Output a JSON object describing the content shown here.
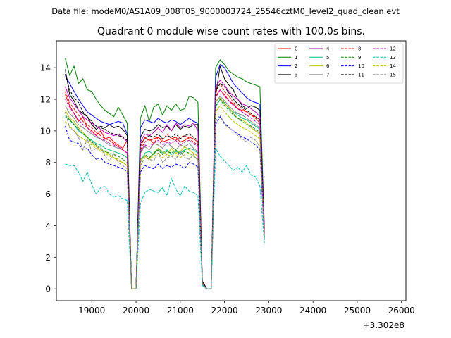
{
  "chart_data": {
    "type": "line",
    "suptitle": "Data file: modeM0/AS1A09_008T05_9000003724_25546cztM0_level2_quad_clean.evt",
    "title": "Quadrant 0 module wise count rates with 100.0s bins.",
    "xlabel": "",
    "ylabel": "",
    "x_offset_label": "+3.302e8",
    "x_tick_labels": [
      "19000",
      "20000",
      "21000",
      "22000",
      "23000",
      "24000",
      "25000",
      "26000"
    ],
    "x_ticks": [
      19000,
      20000,
      21000,
      22000,
      23000,
      24000,
      25000,
      26000
    ],
    "y_tick_labels": [
      "0",
      "2",
      "4",
      "6",
      "8",
      "10",
      "12",
      "14"
    ],
    "y_ticks": [
      0,
      2,
      4,
      6,
      8,
      10,
      12,
      14
    ],
    "xlim": [
      18200,
      26100
    ],
    "ylim": [
      -0.75,
      15.7
    ],
    "grid": false,
    "legend_position": "top-right",
    "legend_columns": 4,
    "segments": [
      {
        "start": 18400,
        "n": 15
      },
      {
        "start": 19900,
        "n": 1
      },
      {
        "start": 20000,
        "n": 20
      },
      {
        "start": 22000,
        "n": 14
      },
      {
        "start": 23400,
        "n": 2
      },
      {
        "start": 23600,
        "n": 9
      },
      {
        "start": 24500,
        "n": 12
      }
    ],
    "series": [
      {
        "name": "0",
        "color": "#ff0000",
        "dash": "solid",
        "values": [
          12.3,
          11.6,
          11.1,
          10.6,
          10.9,
          10.2,
          10.0,
          9.7,
          10.0,
          9.5,
          9.6,
          9.3,
          9.1,
          8.9,
          9.4,
          0.0,
          0,
          9.0,
          9.6,
          9.4,
          9.5,
          9.6,
          9.3,
          9.4,
          9.5,
          9.6,
          9.3,
          9.4,
          9.6,
          9.5,
          9.3,
          0.4,
          0.0,
          0,
          12.2,
          12.6,
          12.3,
          11.9,
          11.7,
          11.4,
          11.3,
          11.2,
          11.0,
          10.9,
          10.7,
          3.5
        ]
      },
      {
        "name": "1",
        "color": "#008000",
        "dash": "solid",
        "values": [
          14.6,
          13.5,
          14.1,
          13.0,
          13.3,
          12.6,
          12.5,
          12.0,
          11.6,
          11.3,
          11.1,
          10.9,
          11.5,
          11.0,
          10.5,
          0.0,
          0,
          10.8,
          11.6,
          10.6,
          11.5,
          11.7,
          11.0,
          11.6,
          11.3,
          11.7,
          11.3,
          11.4,
          12.2,
          12.1,
          11.8,
          0.3,
          0.0,
          0,
          14.0,
          14.5,
          14.2,
          13.8,
          13.6,
          13.4,
          13.3,
          13.1,
          13.0,
          12.9,
          12.8,
          4.0
        ]
      },
      {
        "name": "2",
        "color": "#0000ff",
        "dash": "solid",
        "values": [
          13.5,
          13.0,
          12.5,
          12.0,
          11.6,
          11.2,
          11.0,
          10.8,
          10.6,
          10.5,
          10.4,
          10.5,
          10.6,
          10.5,
          9.8,
          0.0,
          0,
          10.2,
          10.7,
          10.6,
          10.5,
          10.8,
          10.6,
          10.5,
          10.7,
          10.6,
          10.4,
          10.6,
          10.8,
          10.6,
          10.5,
          0.3,
          0.0,
          0,
          13.4,
          14.2,
          14.0,
          13.5,
          13.0,
          12.7,
          12.4,
          12.1,
          11.9,
          11.8,
          11.7,
          3.8
        ]
      },
      {
        "name": "3",
        "color": "#000000",
        "dash": "solid",
        "values": [
          13.9,
          12.3,
          11.9,
          11.3,
          11.1,
          10.9,
          10.4,
          10.1,
          10.3,
          10.2,
          10.4,
          10.2,
          10.3,
          10.1,
          9.7,
          0.0,
          0,
          9.6,
          10.1,
          10.0,
          10.1,
          10.4,
          10.2,
          10.3,
          10.0,
          10.4,
          10.1,
          10.3,
          10.2,
          10.4,
          10.4,
          0.5,
          0.0,
          0,
          12.2,
          14.1,
          13.3,
          12.9,
          12.6,
          12.0,
          11.6,
          11.4,
          11.6,
          11.5,
          11.3,
          3.4
        ]
      },
      {
        "name": "4",
        "color": "#bf00bf",
        "dash": "solid",
        "values": [
          12.8,
          12.1,
          11.7,
          11.3,
          10.9,
          10.7,
          10.5,
          10.3,
          10.1,
          9.9,
          9.8,
          9.7,
          9.8,
          9.6,
          9.3,
          0.0,
          0,
          9.3,
          9.8,
          9.7,
          9.9,
          10.2,
          9.9,
          10.4,
          10.0,
          10.5,
          10.2,
          10.4,
          10.3,
          10.5,
          10.0,
          0.3,
          0.0,
          0,
          12.8,
          13.2,
          12.9,
          12.5,
          12.2,
          12.0,
          11.7,
          11.6,
          11.4,
          11.2,
          10.9,
          3.6
        ]
      },
      {
        "name": "5",
        "color": "#00bf80",
        "dash": "solid",
        "values": [
          10.9,
          10.7,
          10.4,
          10.0,
          9.8,
          9.6,
          9.4,
          9.2,
          9.1,
          8.9,
          8.8,
          8.7,
          8.6,
          8.5,
          8.3,
          0.0,
          0,
          8.0,
          8.6,
          8.7,
          8.5,
          8.9,
          8.6,
          8.8,
          8.5,
          8.7,
          8.6,
          8.8,
          8.9,
          8.8,
          8.6,
          0.3,
          0.0,
          0,
          11.5,
          12.0,
          11.8,
          11.4,
          11.2,
          11.0,
          10.8,
          10.7,
          10.5,
          10.3,
          10.1,
          3.3
        ]
      },
      {
        "name": "6",
        "color": "#bfbf00",
        "dash": "solid",
        "values": [
          11.3,
          10.8,
          10.6,
          10.2,
          9.9,
          9.6,
          9.2,
          9.0,
          8.8,
          8.7,
          8.5,
          8.3,
          8.1,
          8.0,
          7.8,
          0.0,
          0,
          8.1,
          8.4,
          8.2,
          8.6,
          8.9,
          8.7,
          8.5,
          8.9,
          8.6,
          8.7,
          9.0,
          8.8,
          8.6,
          8.4,
          0.3,
          0.0,
          0,
          11.9,
          12.1,
          11.7,
          11.5,
          11.1,
          10.8,
          10.7,
          10.5,
          10.2,
          10.0,
          9.8,
          3.2
        ]
      },
      {
        "name": "7",
        "color": "#808080",
        "dash": "solid",
        "values": [
          11.6,
          11.1,
          10.8,
          10.4,
          10.2,
          10.0,
          9.8,
          9.6,
          9.5,
          9.3,
          9.1,
          9.0,
          8.9,
          8.8,
          8.6,
          0.0,
          0,
          8.6,
          9.0,
          8.8,
          9.2,
          9.1,
          8.9,
          9.3,
          9.0,
          8.8,
          9.1,
          9.0,
          9.2,
          8.9,
          8.7,
          0.3,
          0.0,
          0,
          11.8,
          12.2,
          11.9,
          11.6,
          11.3,
          11.1,
          11.0,
          10.8,
          10.6,
          10.4,
          10.2,
          3.4
        ]
      },
      {
        "name": "8",
        "color": "#ff0000",
        "dash": "dashed",
        "values": [
          12.5,
          11.8,
          11.4,
          11.0,
          10.6,
          10.4,
          10.2,
          9.9,
          9.7,
          9.5,
          9.4,
          9.2,
          9.0,
          8.8,
          8.6,
          0.0,
          0,
          8.8,
          9.3,
          9.5,
          9.2,
          9.6,
          9.4,
          9.8,
          9.5,
          9.4,
          9.6,
          9.7,
          9.5,
          9.3,
          9.1,
          0.3,
          0.0,
          0,
          12.4,
          13.0,
          12.5,
          12.2,
          11.8,
          11.6,
          11.4,
          11.2,
          11.0,
          10.8,
          10.5,
          3.5
        ]
      },
      {
        "name": "9",
        "color": "#008000",
        "dash": "dashed",
        "values": [
          11.0,
          10.7,
          10.4,
          10.1,
          9.8,
          9.6,
          9.3,
          9.1,
          8.9,
          8.7,
          8.6,
          8.5,
          8.4,
          8.2,
          8.0,
          0.0,
          0,
          8.2,
          8.5,
          8.3,
          8.6,
          8.8,
          8.5,
          8.7,
          8.6,
          8.8,
          8.5,
          8.7,
          8.6,
          8.4,
          8.2,
          0.3,
          0.0,
          0,
          11.6,
          12.0,
          11.6,
          11.3,
          11.0,
          10.8,
          10.6,
          10.4,
          10.3,
          10.1,
          9.9,
          3.3
        ]
      },
      {
        "name": "10",
        "color": "#0000ff",
        "dash": "dashed",
        "values": [
          10.3,
          9.4,
          9.3,
          9.2,
          8.8,
          8.9,
          8.5,
          8.2,
          8.3,
          8.0,
          7.9,
          7.8,
          7.7,
          7.6,
          7.4,
          0.0,
          0,
          7.4,
          7.8,
          7.7,
          7.6,
          7.9,
          7.6,
          7.8,
          7.7,
          7.9,
          7.8,
          7.6,
          8.0,
          7.9,
          7.7,
          0.3,
          0.0,
          0,
          10.4,
          10.9,
          10.5,
          10.2,
          10.0,
          9.8,
          9.6,
          9.5,
          9.3,
          9.1,
          8.8,
          3.1
        ]
      },
      {
        "name": "11",
        "color": "#000000",
        "dash": "dashed",
        "values": [
          13.6,
          12.6,
          12.1,
          11.8,
          11.2,
          10.9,
          10.6,
          10.3,
          10.2,
          10.1,
          9.9,
          9.8,
          9.7,
          9.6,
          9.4,
          0.0,
          0,
          9.2,
          9.5,
          9.7,
          9.6,
          9.8,
          9.5,
          9.7,
          9.6,
          9.8,
          9.5,
          9.7,
          9.8,
          9.6,
          9.4,
          0.3,
          0.0,
          0,
          12.5,
          13.0,
          12.8,
          12.4,
          12.0,
          11.7,
          11.5,
          11.3,
          11.1,
          10.9,
          10.7,
          3.6
        ]
      },
      {
        "name": "12",
        "color": "#bf00bf",
        "dash": "dashed",
        "values": [
          12.0,
          11.5,
          11.1,
          10.7,
          10.4,
          10.2,
          9.9,
          9.7,
          9.5,
          9.4,
          9.2,
          9.1,
          9.0,
          8.8,
          8.6,
          0.0,
          0,
          8.7,
          9.1,
          9.0,
          9.2,
          9.4,
          9.1,
          9.3,
          9.2,
          9.4,
          9.1,
          9.3,
          9.4,
          9.2,
          9.0,
          0.3,
          0.0,
          0,
          12.1,
          12.6,
          12.2,
          11.9,
          11.6,
          11.4,
          11.2,
          11.0,
          10.8,
          10.6,
          10.4,
          3.4
        ]
      },
      {
        "name": "13",
        "color": "#00bfbf",
        "dash": "dashed",
        "values": [
          7.9,
          7.8,
          7.8,
          7.4,
          6.8,
          7.4,
          6.6,
          6.0,
          6.4,
          6.5,
          6.0,
          5.8,
          5.9,
          5.7,
          5.6,
          0.0,
          0,
          5.4,
          6.1,
          6.3,
          6.2,
          6.1,
          6.4,
          5.9,
          7.0,
          6.3,
          5.9,
          6.5,
          6.2,
          6.1,
          5.9,
          0.2,
          0.0,
          0,
          8.9,
          8.4,
          8.1,
          7.8,
          7.5,
          7.7,
          7.4,
          7.8,
          7.2,
          7.1,
          6.5,
          2.9
        ]
      },
      {
        "name": "14",
        "color": "#bfbf00",
        "dash": "dashed",
        "values": [
          10.6,
          10.3,
          10.0,
          9.7,
          9.5,
          9.3,
          9.1,
          8.9,
          8.7,
          8.6,
          8.4,
          8.3,
          8.2,
          8.0,
          7.8,
          0.0,
          0,
          7.9,
          8.3,
          8.2,
          8.4,
          8.6,
          8.3,
          8.5,
          8.4,
          8.6,
          8.3,
          8.5,
          8.6,
          8.4,
          8.2,
          0.3,
          0.0,
          0,
          11.2,
          11.6,
          11.2,
          10.9,
          10.6,
          10.4,
          10.2,
          10.1,
          9.9,
          9.7,
          9.5,
          3.2
        ]
      },
      {
        "name": "15",
        "color": "#808080",
        "dash": "dashed",
        "values": [
          11.2,
          10.2,
          10.0,
          9.6,
          8.8,
          9.5,
          8.7,
          8.9,
          9.0,
          8.4,
          8.1,
          8.6,
          8.0,
          7.8,
          7.6,
          0.0,
          0,
          7.8,
          8.3,
          8.2,
          8.1,
          8.6,
          8.0,
          8.3,
          8.4,
          8.2,
          8.7,
          8.3,
          8.2,
          8.5,
          8.1,
          0.3,
          0.0,
          0,
          10.6,
          11.0,
          10.4,
          10.2,
          10.0,
          9.7,
          9.5,
          9.3,
          9.6,
          9.4,
          9.0,
          3.2
        ]
      }
    ]
  }
}
